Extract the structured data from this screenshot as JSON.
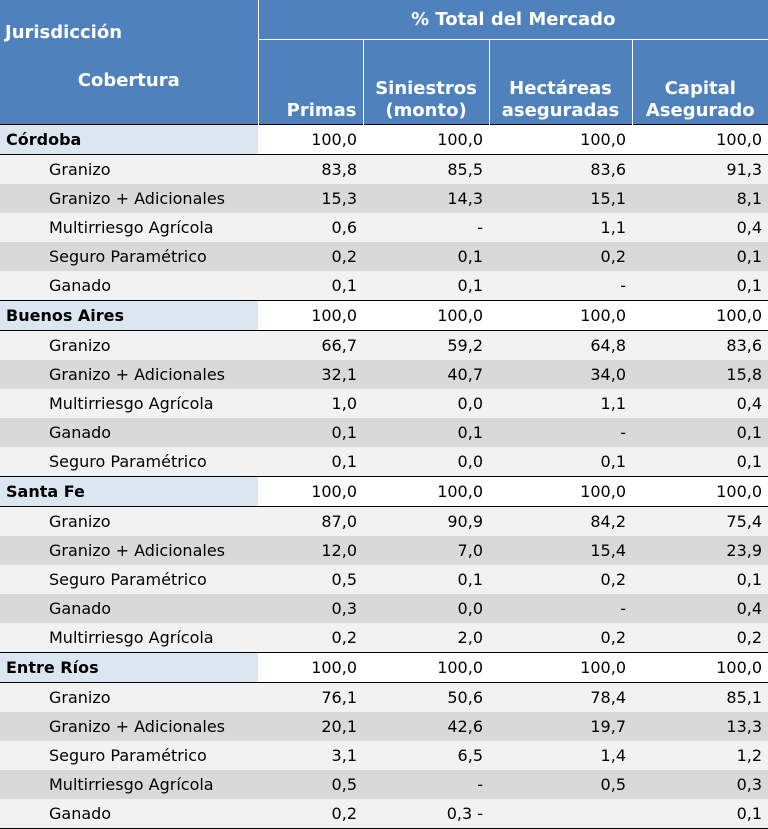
{
  "header": {
    "jurisdiccion": "Jurisdicción",
    "cobertura": "Cobertura",
    "group": "% Total del Mercado",
    "columns": [
      "Primas",
      "Siniestros (monto)",
      "Hectáreas aseguradas",
      "Capital Asegurado"
    ]
  },
  "groups": [
    {
      "name": "Córdoba",
      "total": [
        "100,0",
        "100,0",
        "100,0",
        "100,0"
      ],
      "rows": [
        {
          "label": "Granizo",
          "values": [
            "83,8",
            "85,5",
            "83,6",
            "91,3"
          ]
        },
        {
          "label": "Granizo + Adicionales",
          "values": [
            "15,3",
            "14,3",
            "15,1",
            "8,1"
          ]
        },
        {
          "label": "Multirriesgo Agrícola",
          "values": [
            "0,6",
            "-",
            "1,1",
            "0,4"
          ]
        },
        {
          "label": "Seguro Paramétrico",
          "values": [
            "0,2",
            "0,1",
            "0,2",
            "0,1"
          ]
        },
        {
          "label": "Ganado",
          "values": [
            "0,1",
            "0,1",
            "-",
            "0,1"
          ]
        }
      ]
    },
    {
      "name": "Buenos Aires",
      "total": [
        "100,0",
        "100,0",
        "100,0",
        "100,0"
      ],
      "rows": [
        {
          "label": "Granizo",
          "values": [
            "66,7",
            "59,2",
            "64,8",
            "83,6"
          ]
        },
        {
          "label": "Granizo + Adicionales",
          "values": [
            "32,1",
            "40,7",
            "34,0",
            "15,8"
          ]
        },
        {
          "label": "Multirriesgo Agrícola",
          "values": [
            "1,0",
            "0,0",
            "1,1",
            "0,4"
          ]
        },
        {
          "label": "Ganado",
          "values": [
            "0,1",
            "0,1",
            "-",
            "0,1"
          ]
        },
        {
          "label": "Seguro Paramétrico",
          "values": [
            "0,1",
            "0,0",
            "0,1",
            "0,1"
          ]
        }
      ]
    },
    {
      "name": "Santa Fe",
      "total": [
        "100,0",
        "100,0",
        "100,0",
        "100,0"
      ],
      "rows": [
        {
          "label": "Granizo",
          "values": [
            "87,0",
            "90,9",
            "84,2",
            "75,4"
          ]
        },
        {
          "label": "Granizo + Adicionales",
          "values": [
            "12,0",
            "7,0",
            "15,4",
            "23,9"
          ]
        },
        {
          "label": "Seguro Paramétrico",
          "values": [
            "0,5",
            "0,1",
            "0,2",
            "0,1"
          ]
        },
        {
          "label": "Ganado",
          "values": [
            "0,3",
            "0,0",
            "-",
            "0,4"
          ]
        },
        {
          "label": "Multirriesgo Agrícola",
          "values": [
            "0,2",
            "2,0",
            "0,2",
            "0,2"
          ]
        }
      ]
    },
    {
      "name": "Entre Ríos",
      "total": [
        "100,0",
        "100,0",
        "100,0",
        "100,0"
      ],
      "rows": [
        {
          "label": "Granizo",
          "values": [
            "76,1",
            "50,6",
            "78,4",
            "85,1"
          ]
        },
        {
          "label": "Granizo + Adicionales",
          "values": [
            "20,1",
            "42,6",
            "19,7",
            "13,3"
          ]
        },
        {
          "label": "Seguro Paramétrico",
          "values": [
            "3,1",
            "6,5",
            "1,4",
            "1,2"
          ]
        },
        {
          "label": "Multirriesgo Agrícola",
          "values": [
            "0,5",
            "-",
            "0,5",
            "0,3"
          ]
        },
        {
          "label": "Ganado",
          "values": [
            "0,2",
            "0,3 -",
            "",
            "0,1"
          ]
        }
      ]
    }
  ]
}
